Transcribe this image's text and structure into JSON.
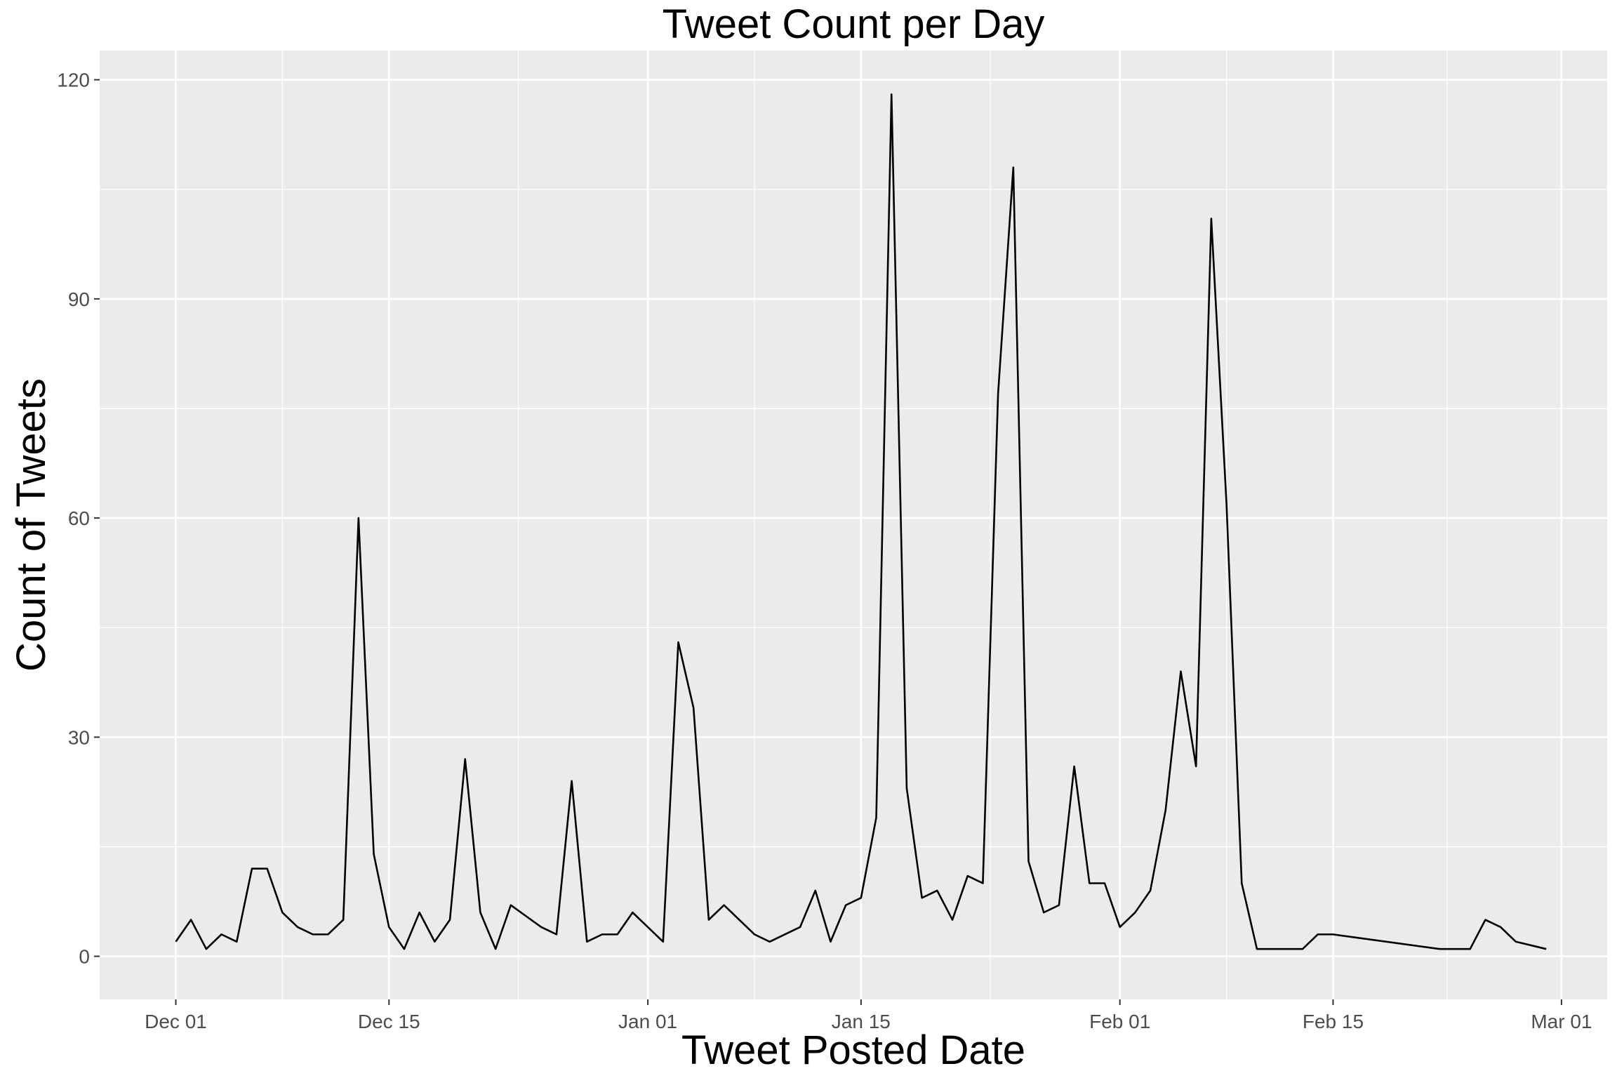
{
  "chart_data": {
    "type": "line",
    "title": "Tweet Count per Day",
    "xlabel": "Tweet Posted Date",
    "ylabel": "Count of Tweets",
    "x_ticks": [
      {
        "date": "2019-12-01",
        "label": "Dec 01"
      },
      {
        "date": "2019-12-15",
        "label": "Dec 15"
      },
      {
        "date": "2020-01-01",
        "label": "Jan 01"
      },
      {
        "date": "2020-01-15",
        "label": "Jan 15"
      },
      {
        "date": "2020-02-01",
        "label": "Feb 01"
      },
      {
        "date": "2020-02-15",
        "label": "Feb 15"
      },
      {
        "date": "2020-03-01",
        "label": "Mar 01"
      }
    ],
    "y_ticks": [
      0,
      30,
      60,
      90,
      120
    ],
    "xlim": [
      "2019-11-26",
      "2020-03-04"
    ],
    "ylim": [
      -5.9,
      124
    ],
    "grid": true,
    "colors": {
      "panel": "#ebebeb",
      "grid": "#ffffff",
      "line": "#000000",
      "tick_text": "#4d4d4d",
      "tick_mark": "#333333"
    },
    "series": [
      {
        "points": [
          [
            "2019-12-01",
            2
          ],
          [
            "2019-12-02",
            5
          ],
          [
            "2019-12-03",
            1
          ],
          [
            "2019-12-04",
            3
          ],
          [
            "2019-12-05",
            2
          ],
          [
            "2019-12-06",
            12
          ],
          [
            "2019-12-07",
            12
          ],
          [
            "2019-12-08",
            6
          ],
          [
            "2019-12-09",
            4
          ],
          [
            "2019-12-10",
            3
          ],
          [
            "2019-12-11",
            3
          ],
          [
            "2019-12-12",
            5
          ],
          [
            "2019-12-13",
            60
          ],
          [
            "2019-12-14",
            14
          ],
          [
            "2019-12-15",
            4
          ],
          [
            "2019-12-16",
            1
          ],
          [
            "2019-12-17",
            6
          ],
          [
            "2019-12-18",
            2
          ],
          [
            "2019-12-19",
            5
          ],
          [
            "2019-12-20",
            27
          ],
          [
            "2019-12-21",
            6
          ],
          [
            "2019-12-22",
            1
          ],
          [
            "2019-12-23",
            7
          ],
          [
            "2019-12-25",
            4
          ],
          [
            "2019-12-26",
            3
          ],
          [
            "2019-12-27",
            24
          ],
          [
            "2019-12-28",
            2
          ],
          [
            "2019-12-29",
            3
          ],
          [
            "2019-12-30",
            3
          ],
          [
            "2019-12-31",
            6
          ],
          [
            "2020-01-02",
            2
          ],
          [
            "2020-01-03",
            43
          ],
          [
            "2020-01-04",
            34
          ],
          [
            "2020-01-05",
            5
          ],
          [
            "2020-01-06",
            7
          ],
          [
            "2020-01-08",
            3
          ],
          [
            "2020-01-09",
            2
          ],
          [
            "2020-01-11",
            4
          ],
          [
            "2020-01-12",
            9
          ],
          [
            "2020-01-13",
            2
          ],
          [
            "2020-01-14",
            7
          ],
          [
            "2020-01-15",
            8
          ],
          [
            "2020-01-16",
            19
          ],
          [
            "2020-01-17",
            118
          ],
          [
            "2020-01-18",
            23
          ],
          [
            "2020-01-19",
            8
          ],
          [
            "2020-01-20",
            9
          ],
          [
            "2020-01-21",
            5
          ],
          [
            "2020-01-22",
            11
          ],
          [
            "2020-01-23",
            10
          ],
          [
            "2020-01-24",
            77
          ],
          [
            "2020-01-25",
            108
          ],
          [
            "2020-01-26",
            13
          ],
          [
            "2020-01-27",
            6
          ],
          [
            "2020-01-28",
            7
          ],
          [
            "2020-01-29",
            26
          ],
          [
            "2020-01-30",
            10
          ],
          [
            "2020-01-31",
            10
          ],
          [
            "2020-02-01",
            4
          ],
          [
            "2020-02-02",
            6
          ],
          [
            "2020-02-03",
            9
          ],
          [
            "2020-02-04",
            20
          ],
          [
            "2020-02-05",
            39
          ],
          [
            "2020-02-06",
            26
          ],
          [
            "2020-02-07",
            101
          ],
          [
            "2020-02-08",
            62
          ],
          [
            "2020-02-09",
            10
          ],
          [
            "2020-02-10",
            1
          ],
          [
            "2020-02-13",
            1
          ],
          [
            "2020-02-14",
            3
          ],
          [
            "2020-02-15",
            3
          ],
          [
            "2020-02-22",
            1
          ],
          [
            "2020-02-24",
            1
          ],
          [
            "2020-02-25",
            5
          ],
          [
            "2020-02-26",
            4
          ],
          [
            "2020-02-27",
            2
          ],
          [
            "2020-02-29",
            1
          ]
        ]
      }
    ]
  }
}
